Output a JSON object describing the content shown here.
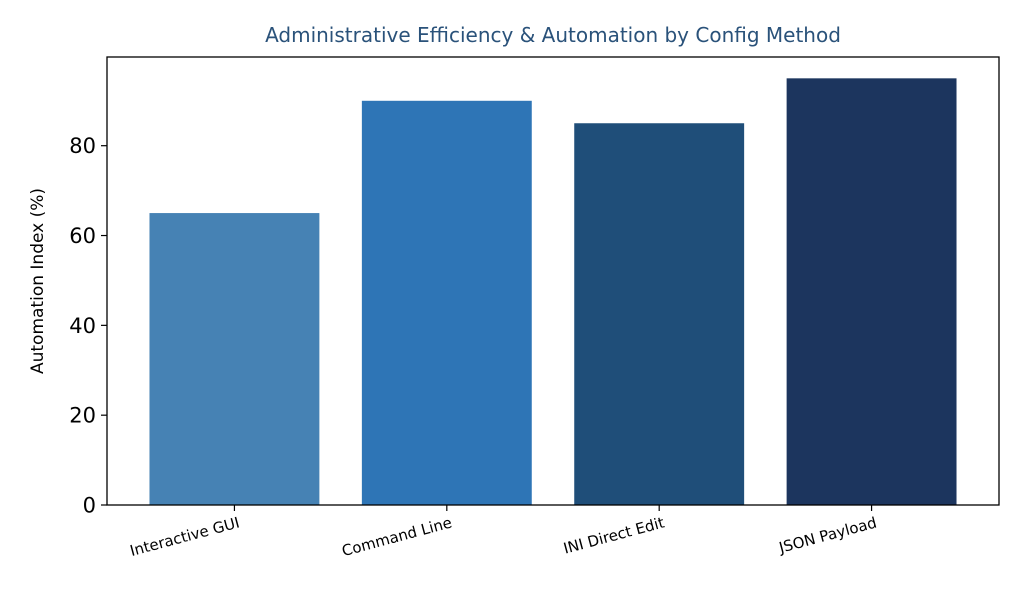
{
  "chart_data": {
    "type": "bar",
    "title": "Administrative Efficiency & Automation by Config Method",
    "xlabel": "",
    "ylabel": "Automation Index (%)",
    "categories": [
      "Interactive GUI",
      "Command Line",
      "INI Direct Edit",
      "JSON Payload"
    ],
    "values": [
      65,
      90,
      85,
      95
    ],
    "bar_colors": [
      "#4682b4",
      "#2e75b6",
      "#1f4e79",
      "#1c355e"
    ],
    "title_color": "#2a527a",
    "ylim": [
      0,
      99.75
    ],
    "yticks": [
      0,
      20,
      40,
      60,
      80
    ],
    "grid": false,
    "legend": "none"
  }
}
